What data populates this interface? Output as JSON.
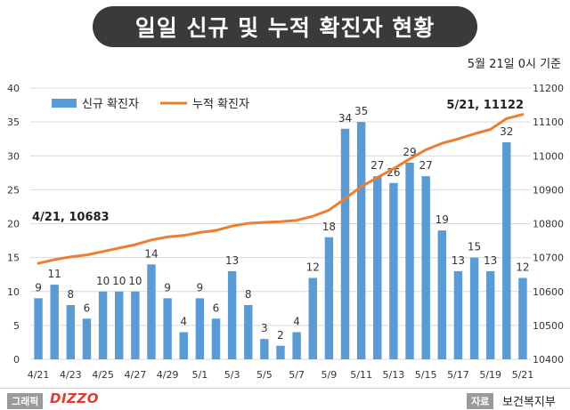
{
  "header": {
    "title": "일일 신규 및 누적 확진자 현황",
    "subtitle": "5월 21일 0시 기준"
  },
  "footer": {
    "credit_label": "그래픽",
    "brand": "DIZZO",
    "source_label": "자료",
    "source": "보건복지부"
  },
  "colors": {
    "bar": "#5b9bd5",
    "line": "#ed7d31",
    "grid": "#d9d9d9",
    "banner": "#3a3a3a"
  },
  "chart_data": {
    "type": "bar",
    "x": [
      "4/21",
      "4/22",
      "4/23",
      "4/24",
      "4/25",
      "4/26",
      "4/27",
      "4/28",
      "4/29",
      "4/30",
      "5/1",
      "5/2",
      "5/3",
      "5/4",
      "5/5",
      "5/6",
      "5/7",
      "5/8",
      "5/9",
      "5/10",
      "5/11",
      "5/12",
      "5/13",
      "5/14",
      "5/15",
      "5/16",
      "5/17",
      "5/18",
      "5/19",
      "5/20",
      "5/21"
    ],
    "x_tick_labels": [
      "4/21",
      "4/23",
      "4/25",
      "4/27",
      "4/29",
      "5/1",
      "5/3",
      "5/5",
      "5/7",
      "5/9",
      "5/11",
      "5/13",
      "5/15",
      "5/17",
      "5/19",
      "5/21"
    ],
    "series": [
      {
        "name": "신규 확진자",
        "type": "bar",
        "axis": "left",
        "values": [
          9,
          11,
          8,
          6,
          10,
          10,
          10,
          14,
          9,
          4,
          9,
          6,
          13,
          8,
          3,
          2,
          4,
          12,
          18,
          34,
          35,
          27,
          26,
          29,
          27,
          19,
          13,
          15,
          13,
          32,
          12
        ]
      },
      {
        "name": "누적 확진자",
        "type": "line",
        "axis": "right",
        "values": [
          10683,
          10694,
          10702,
          10708,
          10718,
          10728,
          10738,
          10752,
          10761,
          10765,
          10774,
          10780,
          10793,
          10801,
          10804,
          10806,
          10810,
          10822,
          10840,
          10874,
          10909,
          10936,
          10962,
          10991,
          11018,
          11037,
          11050,
          11065,
          11078,
          11110,
          11122
        ]
      }
    ],
    "ylim_left": [
      0,
      40
    ],
    "yticks_left": [
      0,
      5,
      10,
      15,
      20,
      25,
      30,
      35,
      40
    ],
    "ylim_right": [
      10400,
      11200
    ],
    "yticks_right": [
      10400,
      10500,
      10600,
      10700,
      10800,
      10900,
      11000,
      11100,
      11200
    ],
    "grid": true,
    "legend": "top-left",
    "annotations": [
      "4/21, 10683",
      "5/21, 11122"
    ]
  }
}
